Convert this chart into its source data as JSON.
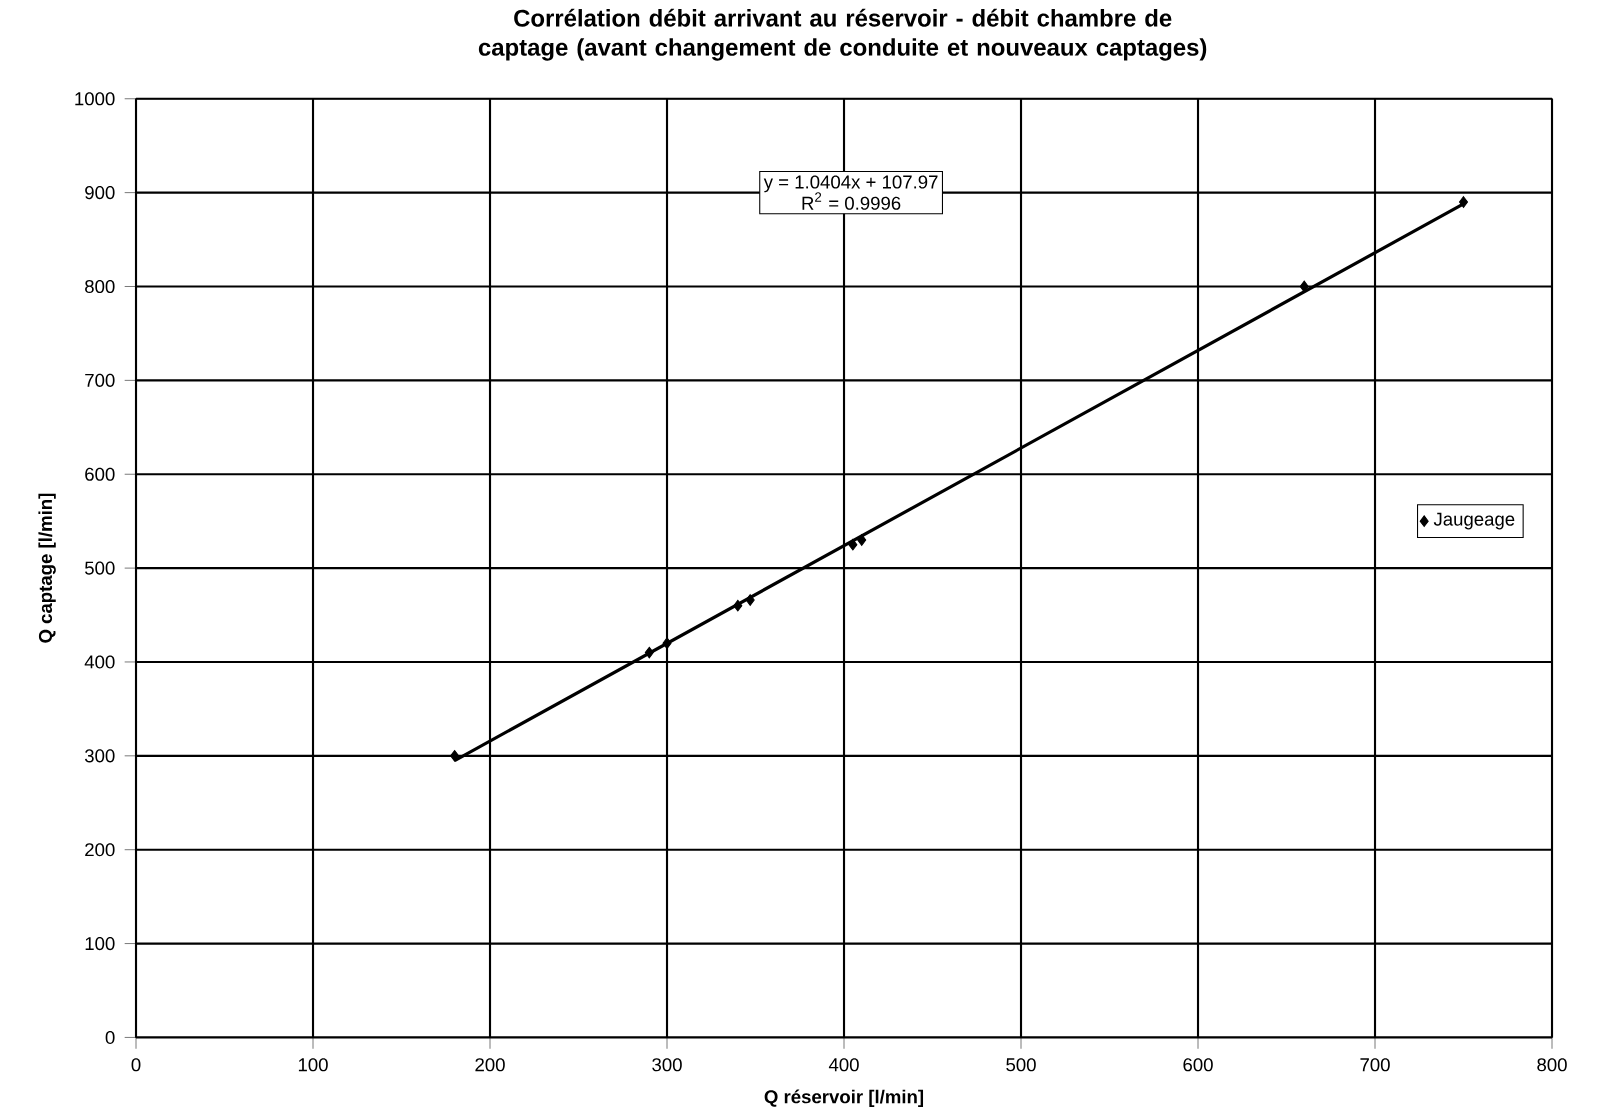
{
  "chart_data": {
    "type": "scatter",
    "title": "Corrélation débit arrivant au réservoir - débit chambre de captage (avant changement de conduite et nouveaux captages)",
    "xlabel": "Q réservoir [l/min]",
    "ylabel": "Q captage [l/min]",
    "series": [
      {
        "name": "Jaugeage",
        "color": "#000000",
        "marker": "diamond",
        "x": [
          180,
          290,
          300,
          340,
          347,
          405,
          410,
          660,
          750
        ],
        "values": [
          300,
          410,
          420,
          460,
          466,
          525,
          530,
          800,
          890
        ]
      },
      {
        "type": "line",
        "color": "#000000",
        "line_style": "solid",
        "x": [
          180,
          750
        ],
        "values": [
          295,
          888
        ]
      }
    ],
    "annotations": [
      "y = 1.0404x + 107.97",
      "R$^{2}$ = 0.9996"
    ],
    "xlim": [
      0,
      800
    ],
    "xticks": [
      0,
      100,
      200,
      300,
      400,
      500,
      600,
      700,
      800
    ],
    "ylim": [
      0,
      1000
    ],
    "yticks": [
      0,
      100,
      200,
      300,
      400,
      500,
      600,
      700,
      800,
      900,
      1000
    ],
    "grid": true,
    "legend": "right"
  }
}
